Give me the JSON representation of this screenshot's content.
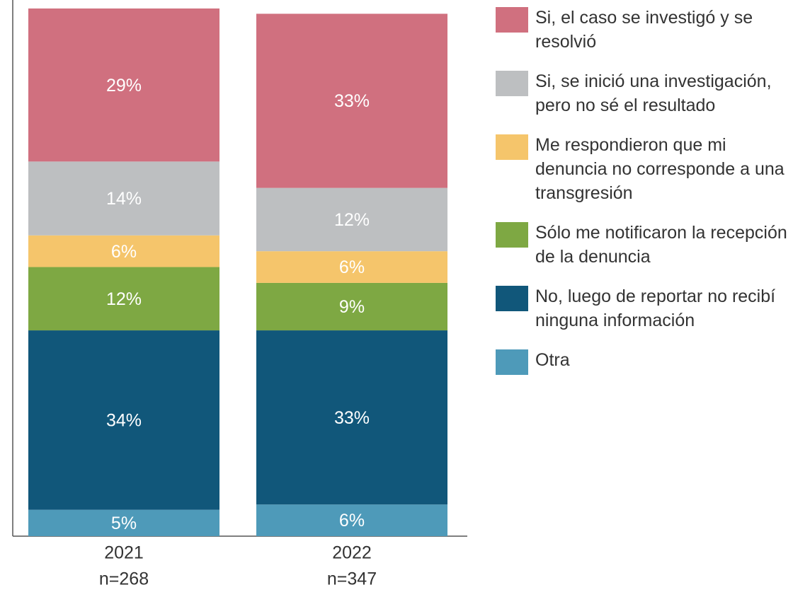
{
  "chart_data": {
    "type": "stacked_bar",
    "categories": [
      "2021",
      "2022"
    ],
    "category_notes": [
      "n=268",
      "n=347"
    ],
    "ylim": [
      0,
      100
    ],
    "series": [
      {
        "name": "Si, el caso se investigó y se resolvió",
        "color": "#d0707f",
        "values": [
          29,
          33
        ],
        "value_labels": [
          "29%",
          "33%"
        ]
      },
      {
        "name": "Si, se inició una investigación, pero no sé el resultado",
        "color": "#bdbfc1",
        "values": [
          14,
          12
        ],
        "value_labels": [
          "14%",
          "12%"
        ]
      },
      {
        "name": "Me respondieron que mi denuncia no corresponde a una transgresión",
        "color": "#f5c56b",
        "values": [
          6,
          6
        ],
        "value_labels": [
          "6%",
          "6%"
        ]
      },
      {
        "name": "Sólo me notificaron la recepción de la denuncia",
        "color": "#7ea843",
        "values": [
          12,
          9
        ],
        "value_labels": [
          "12%",
          "9%"
        ]
      },
      {
        "name": "No, luego de reportar no recibí ninguna información",
        "color": "#11577a",
        "values": [
          34,
          33
        ],
        "value_labels": [
          "34%",
          "33%"
        ]
      },
      {
        "name": "Otra",
        "color": "#4e9ab9",
        "values": [
          5,
          6
        ],
        "value_labels": [
          "5%",
          "6%"
        ]
      }
    ]
  }
}
